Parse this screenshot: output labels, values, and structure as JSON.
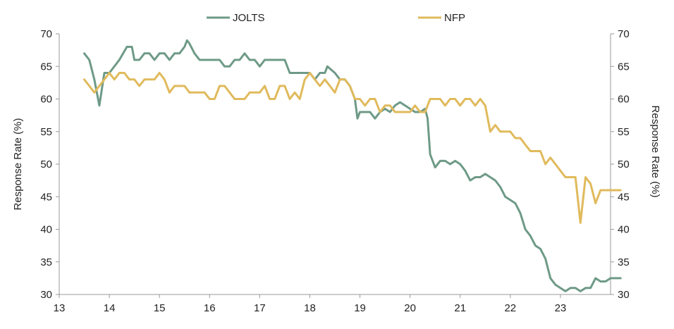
{
  "chart_data": {
    "type": "line",
    "xlim": [
      13,
      24
    ],
    "ylim": [
      30,
      70
    ],
    "x_ticks": [
      13,
      14,
      15,
      16,
      17,
      18,
      19,
      20,
      21,
      22,
      23
    ],
    "y_ticks": [
      30,
      35,
      40,
      45,
      50,
      55,
      60,
      65,
      70
    ],
    "ylabel_left": "Response Rate (%)",
    "ylabel_right": "Response Rate (%)",
    "grid": false,
    "legend_position": "top",
    "series": [
      {
        "name": "JOLTS",
        "color": "#6e9a87",
        "points": [
          [
            13.5,
            67
          ],
          [
            13.6,
            66
          ],
          [
            13.7,
            63
          ],
          [
            13.8,
            59
          ],
          [
            13.9,
            64
          ],
          [
            14.0,
            64
          ],
          [
            14.2,
            66
          ],
          [
            14.35,
            68
          ],
          [
            14.45,
            68
          ],
          [
            14.5,
            66
          ],
          [
            14.6,
            66
          ],
          [
            14.7,
            67
          ],
          [
            14.8,
            67
          ],
          [
            14.9,
            66
          ],
          [
            15.0,
            67
          ],
          [
            15.1,
            67
          ],
          [
            15.2,
            66
          ],
          [
            15.3,
            67
          ],
          [
            15.4,
            67
          ],
          [
            15.5,
            68
          ],
          [
            15.55,
            69
          ],
          [
            15.6,
            68.5
          ],
          [
            15.7,
            67
          ],
          [
            15.8,
            66
          ],
          [
            16.0,
            66
          ],
          [
            16.2,
            66
          ],
          [
            16.3,
            65
          ],
          [
            16.4,
            65
          ],
          [
            16.5,
            66
          ],
          [
            16.6,
            66
          ],
          [
            16.7,
            67
          ],
          [
            16.8,
            66
          ],
          [
            16.9,
            66
          ],
          [
            17.0,
            65
          ],
          [
            17.1,
            66
          ],
          [
            17.3,
            66
          ],
          [
            17.5,
            66
          ],
          [
            17.6,
            64
          ],
          [
            17.8,
            64
          ],
          [
            18.0,
            64
          ],
          [
            18.1,
            63
          ],
          [
            18.2,
            64
          ],
          [
            18.3,
            64
          ],
          [
            18.35,
            65
          ],
          [
            18.5,
            64
          ],
          [
            18.6,
            63
          ],
          [
            18.7,
            63
          ],
          [
            18.8,
            62
          ],
          [
            18.9,
            60
          ],
          [
            18.95,
            57
          ],
          [
            19.0,
            58
          ],
          [
            19.2,
            58
          ],
          [
            19.3,
            57
          ],
          [
            19.4,
            58
          ],
          [
            19.5,
            58.5
          ],
          [
            19.6,
            58
          ],
          [
            19.7,
            59
          ],
          [
            19.8,
            59.5
          ],
          [
            19.9,
            59
          ],
          [
            20.0,
            58.5
          ],
          [
            20.1,
            58
          ],
          [
            20.2,
            58
          ],
          [
            20.3,
            58.5
          ],
          [
            20.35,
            57
          ],
          [
            20.4,
            51.5
          ],
          [
            20.5,
            49.5
          ],
          [
            20.6,
            50.5
          ],
          [
            20.7,
            50.5
          ],
          [
            20.8,
            50
          ],
          [
            20.9,
            50.5
          ],
          [
            21.0,
            50
          ],
          [
            21.1,
            49
          ],
          [
            21.2,
            47.5
          ],
          [
            21.3,
            48
          ],
          [
            21.4,
            48
          ],
          [
            21.5,
            48.5
          ],
          [
            21.6,
            48
          ],
          [
            21.7,
            47.5
          ],
          [
            21.8,
            46.5
          ],
          [
            21.9,
            45
          ],
          [
            22.0,
            44.5
          ],
          [
            22.1,
            44
          ],
          [
            22.2,
            42.5
          ],
          [
            22.3,
            40
          ],
          [
            22.4,
            39
          ],
          [
            22.5,
            37.5
          ],
          [
            22.6,
            37
          ],
          [
            22.7,
            35.5
          ],
          [
            22.8,
            32.5
          ],
          [
            22.9,
            31.5
          ],
          [
            23.0,
            31
          ],
          [
            23.1,
            30.5
          ],
          [
            23.2,
            31
          ],
          [
            23.3,
            31
          ],
          [
            23.4,
            30.5
          ],
          [
            23.5,
            31
          ],
          [
            23.6,
            31
          ],
          [
            23.7,
            32.5
          ],
          [
            23.8,
            32
          ],
          [
            23.9,
            32
          ],
          [
            24.0,
            32.5
          ],
          [
            24.1,
            32.5
          ],
          [
            24.2,
            32.5
          ]
        ]
      },
      {
        "name": "NFP",
        "color": "#e0ba5c",
        "points": [
          [
            13.5,
            63
          ],
          [
            13.6,
            62
          ],
          [
            13.7,
            61
          ],
          [
            13.8,
            62
          ],
          [
            13.9,
            63
          ],
          [
            14.0,
            64
          ],
          [
            14.1,
            63
          ],
          [
            14.2,
            64
          ],
          [
            14.3,
            64
          ],
          [
            14.4,
            63
          ],
          [
            14.5,
            63
          ],
          [
            14.6,
            62
          ],
          [
            14.7,
            63
          ],
          [
            14.8,
            63
          ],
          [
            14.9,
            63
          ],
          [
            15.0,
            64
          ],
          [
            15.1,
            63
          ],
          [
            15.2,
            61
          ],
          [
            15.3,
            62
          ],
          [
            15.4,
            62
          ],
          [
            15.5,
            62
          ],
          [
            15.6,
            61
          ],
          [
            15.7,
            61
          ],
          [
            15.8,
            61
          ],
          [
            15.9,
            61
          ],
          [
            16.0,
            60
          ],
          [
            16.1,
            60
          ],
          [
            16.2,
            62
          ],
          [
            16.3,
            62
          ],
          [
            16.4,
            61
          ],
          [
            16.5,
            60
          ],
          [
            16.6,
            60
          ],
          [
            16.7,
            60
          ],
          [
            16.8,
            61
          ],
          [
            16.9,
            61
          ],
          [
            17.0,
            61
          ],
          [
            17.1,
            62
          ],
          [
            17.2,
            60
          ],
          [
            17.3,
            60
          ],
          [
            17.4,
            62
          ],
          [
            17.5,
            62
          ],
          [
            17.6,
            60
          ],
          [
            17.7,
            61
          ],
          [
            17.8,
            60
          ],
          [
            17.9,
            63
          ],
          [
            18.0,
            64
          ],
          [
            18.1,
            63
          ],
          [
            18.2,
            62
          ],
          [
            18.3,
            63
          ],
          [
            18.4,
            62
          ],
          [
            18.5,
            61
          ],
          [
            18.6,
            63
          ],
          [
            18.7,
            63
          ],
          [
            18.8,
            62
          ],
          [
            18.9,
            60
          ],
          [
            19.0,
            60
          ],
          [
            19.1,
            59
          ],
          [
            19.2,
            60
          ],
          [
            19.3,
            60
          ],
          [
            19.4,
            58
          ],
          [
            19.5,
            59
          ],
          [
            19.6,
            59
          ],
          [
            19.7,
            58
          ],
          [
            19.8,
            58
          ],
          [
            19.9,
            58
          ],
          [
            20.0,
            58
          ],
          [
            20.1,
            59
          ],
          [
            20.2,
            58
          ],
          [
            20.3,
            58
          ],
          [
            20.4,
            60
          ],
          [
            20.5,
            60
          ],
          [
            20.6,
            60
          ],
          [
            20.7,
            59
          ],
          [
            20.8,
            60
          ],
          [
            20.9,
            60
          ],
          [
            21.0,
            59
          ],
          [
            21.1,
            60
          ],
          [
            21.2,
            60
          ],
          [
            21.3,
            59
          ],
          [
            21.4,
            60
          ],
          [
            21.5,
            59
          ],
          [
            21.6,
            55
          ],
          [
            21.7,
            56
          ],
          [
            21.8,
            55
          ],
          [
            21.9,
            55
          ],
          [
            22.0,
            55
          ],
          [
            22.1,
            54
          ],
          [
            22.2,
            54
          ],
          [
            22.3,
            53
          ],
          [
            22.4,
            52
          ],
          [
            22.5,
            52
          ],
          [
            22.6,
            52
          ],
          [
            22.7,
            50
          ],
          [
            22.8,
            51
          ],
          [
            22.9,
            50
          ],
          [
            23.0,
            49
          ],
          [
            23.1,
            48
          ],
          [
            23.2,
            48
          ],
          [
            23.3,
            48
          ],
          [
            23.4,
            41
          ],
          [
            23.5,
            48
          ],
          [
            23.6,
            47
          ],
          [
            23.7,
            44
          ],
          [
            23.8,
            46
          ],
          [
            23.9,
            46
          ],
          [
            24.0,
            46
          ],
          [
            24.1,
            46
          ],
          [
            24.2,
            46
          ]
        ]
      }
    ]
  }
}
